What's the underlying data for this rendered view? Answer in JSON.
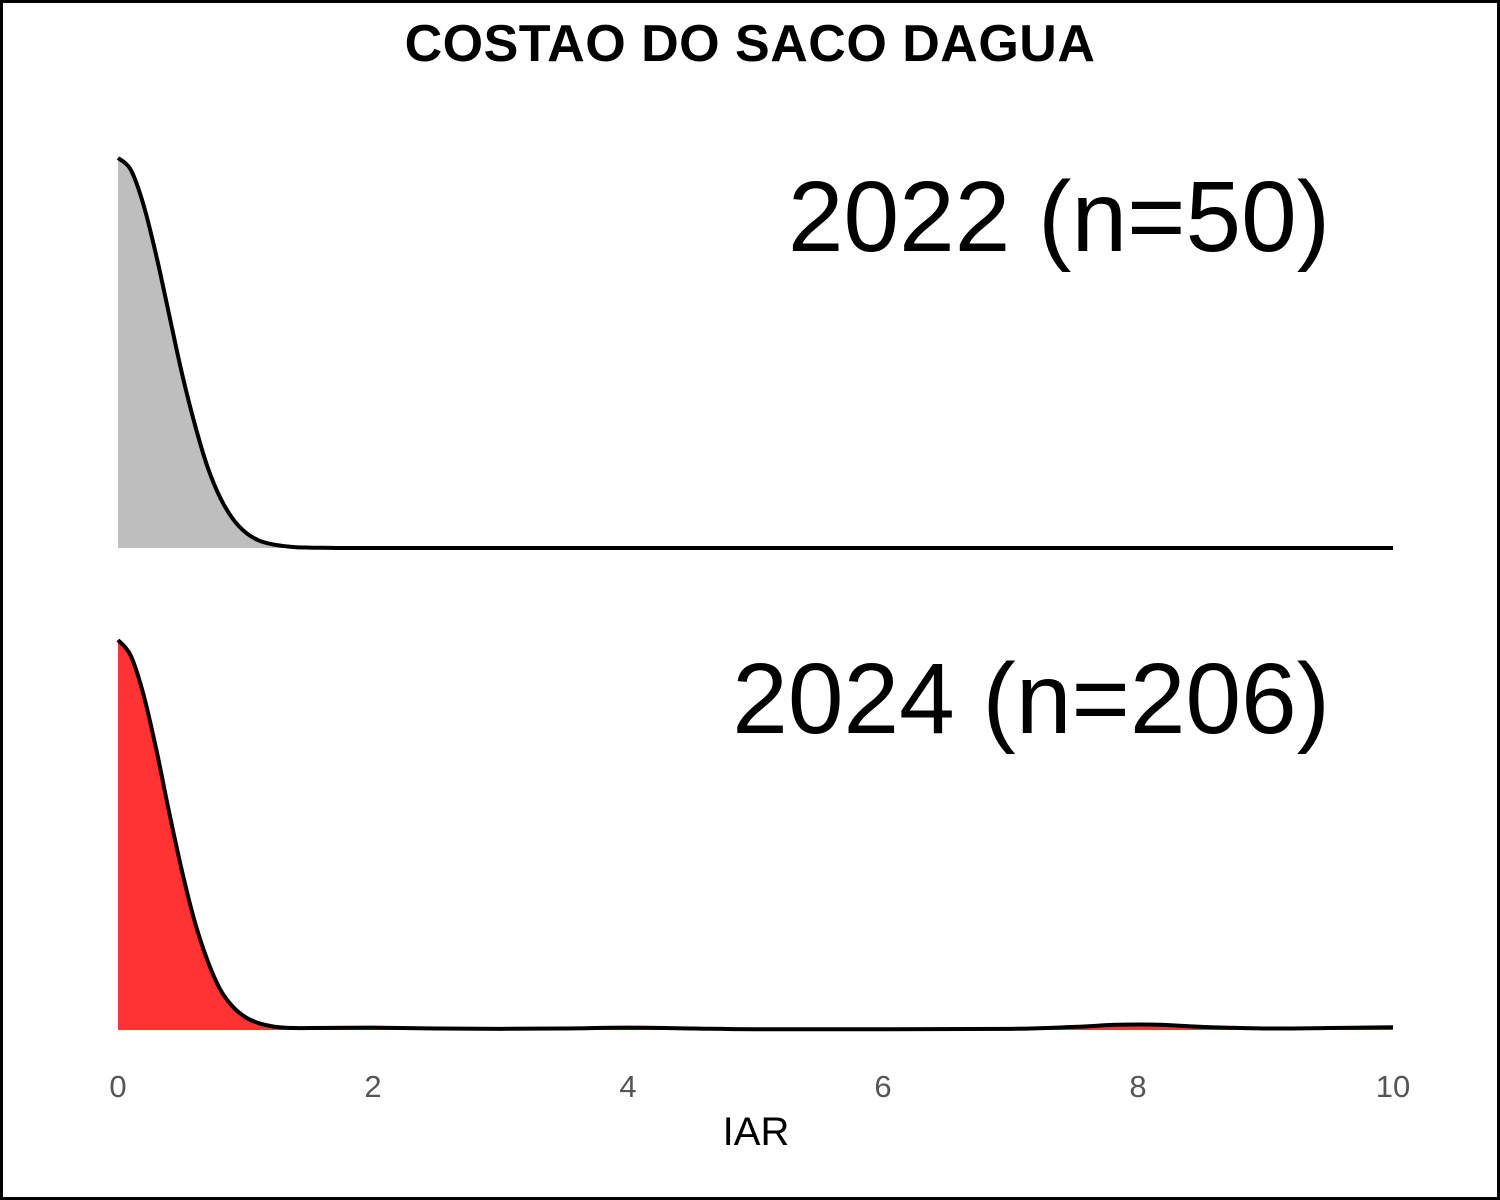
{
  "chart_data": {
    "type": "ridgeline-density",
    "title": "COSTAO DO SACO DAGUA",
    "xlabel": "IAR",
    "xlim": [
      0,
      10
    ],
    "x_ticks": [
      0,
      2,
      4,
      6,
      8,
      10
    ],
    "x_tick_labels": [
      "0",
      "2",
      "4",
      "6",
      "8",
      "10"
    ],
    "series": [
      {
        "name": "2022 (n=50)",
        "color": "#bebebe",
        "x": [
          0,
          0.1,
          0.2,
          0.3,
          0.4,
          0.5,
          0.6,
          0.7,
          0.8,
          0.9,
          1.0,
          1.1,
          1.2,
          1.3,
          1.4,
          1.5,
          1.6,
          1.8,
          2.0,
          3.0,
          4.0,
          5.0,
          6.0,
          7.0,
          8.0,
          9.0,
          10.0
        ],
        "y": [
          1.0,
          0.97,
          0.88,
          0.75,
          0.6,
          0.45,
          0.32,
          0.21,
          0.13,
          0.075,
          0.04,
          0.02,
          0.01,
          0.005,
          0.002,
          0.001,
          0.0005,
          0,
          0,
          0,
          0,
          0,
          0,
          0,
          0,
          0,
          0
        ]
      },
      {
        "name": "2024 (n=206)",
        "color": "#ff3333",
        "x": [
          0,
          0.1,
          0.2,
          0.3,
          0.4,
          0.5,
          0.6,
          0.7,
          0.8,
          0.9,
          1.0,
          1.1,
          1.2,
          1.3,
          1.4,
          1.5,
          2.0,
          2.5,
          3.0,
          3.5,
          4.0,
          4.5,
          5.0,
          6.0,
          7.0,
          7.5,
          7.8,
          8.0,
          8.2,
          8.5,
          9.0,
          9.5,
          10.0
        ],
        "y": [
          1.0,
          0.96,
          0.86,
          0.72,
          0.56,
          0.41,
          0.28,
          0.18,
          0.105,
          0.06,
          0.033,
          0.018,
          0.01,
          0.006,
          0.005,
          0.005,
          0.006,
          0.004,
          0.003,
          0.004,
          0.006,
          0.004,
          0.002,
          0.002,
          0.003,
          0.008,
          0.013,
          0.014,
          0.013,
          0.008,
          0.004,
          0.005,
          0.007
        ]
      }
    ]
  }
}
